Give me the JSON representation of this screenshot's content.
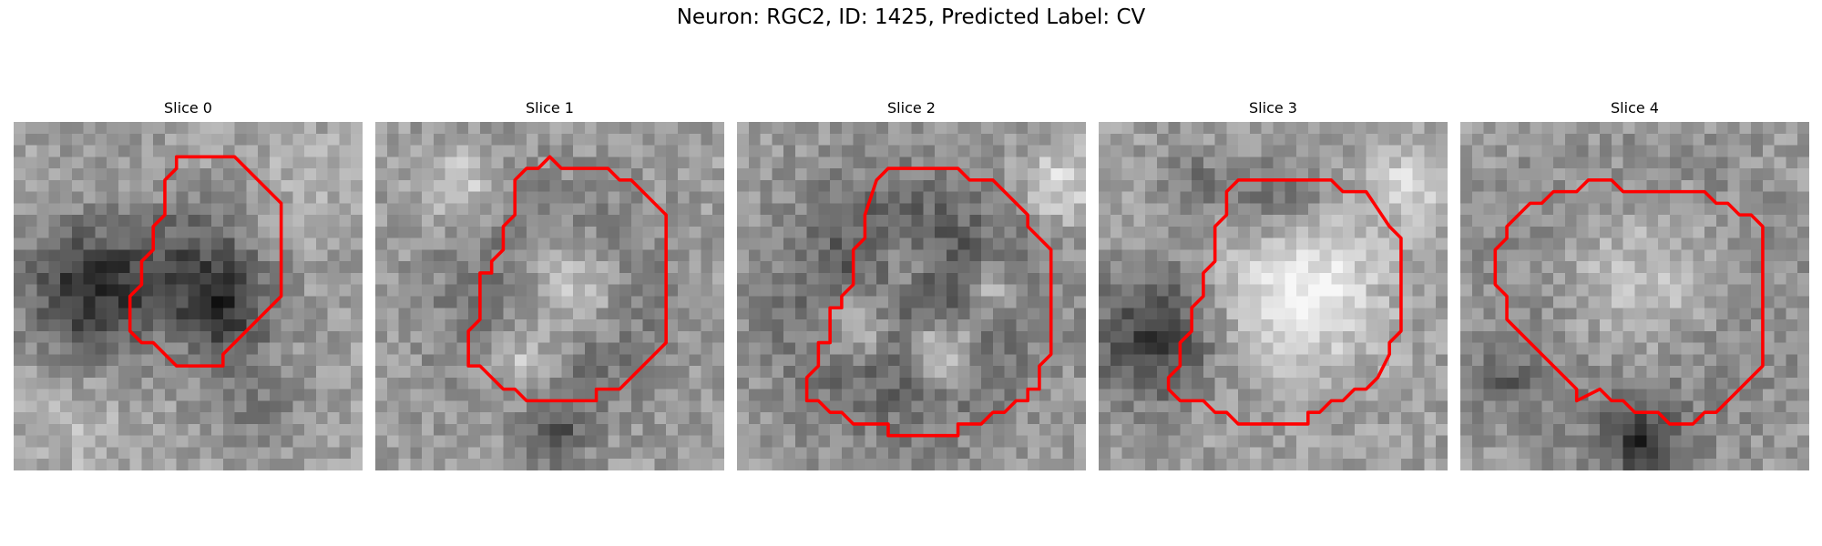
{
  "figure": {
    "title": "Neuron: RGC2, ID: 1425, Predicted Label: CV"
  },
  "colors": {
    "contour": "#ff0000"
  },
  "panels": [
    {
      "title": "Slice 0",
      "grid": 30,
      "contour": [
        [
          14,
          3
        ],
        [
          19,
          3
        ],
        [
          23,
          7
        ],
        [
          23,
          15
        ],
        [
          18,
          20
        ],
        [
          18,
          21
        ],
        [
          14,
          21
        ],
        [
          12,
          19
        ],
        [
          11,
          19
        ],
        [
          10,
          18
        ],
        [
          10,
          15
        ],
        [
          11,
          14
        ],
        [
          11,
          12
        ],
        [
          12,
          11
        ],
        [
          12,
          9
        ],
        [
          13,
          8
        ],
        [
          13,
          5
        ],
        [
          14,
          4
        ]
      ]
    },
    {
      "title": "Slice 1",
      "grid": 30,
      "contour": [
        [
          15,
          3
        ],
        [
          16,
          4
        ],
        [
          20,
          4
        ],
        [
          21,
          5
        ],
        [
          22,
          5
        ],
        [
          25,
          8
        ],
        [
          25,
          19
        ],
        [
          24,
          20
        ],
        [
          23,
          21
        ],
        [
          22,
          22
        ],
        [
          21,
          23
        ],
        [
          19,
          23
        ],
        [
          19,
          24
        ],
        [
          13,
          24
        ],
        [
          12,
          23
        ],
        [
          11,
          23
        ],
        [
          10,
          22
        ],
        [
          9,
          21
        ],
        [
          8,
          21
        ],
        [
          8,
          18
        ],
        [
          9,
          17
        ],
        [
          9,
          13
        ],
        [
          10,
          13
        ],
        [
          10,
          12
        ],
        [
          11,
          11
        ],
        [
          11,
          9
        ],
        [
          12,
          8
        ],
        [
          12,
          5
        ],
        [
          13,
          4
        ],
        [
          14,
          4
        ]
      ]
    },
    {
      "title": "Slice 2",
      "grid": 30,
      "contour": [
        [
          13,
          4
        ],
        [
          19,
          4
        ],
        [
          20,
          5
        ],
        [
          22,
          5
        ],
        [
          25,
          8
        ],
        [
          25,
          9
        ],
        [
          26,
          10
        ],
        [
          27,
          11
        ],
        [
          27,
          20
        ],
        [
          26,
          21
        ],
        [
          26,
          23
        ],
        [
          25,
          23
        ],
        [
          25,
          24
        ],
        [
          24,
          24
        ],
        [
          23,
          25
        ],
        [
          22,
          25
        ],
        [
          21,
          26
        ],
        [
          19,
          26
        ],
        [
          19,
          27
        ],
        [
          13,
          27
        ],
        [
          13,
          26
        ],
        [
          10,
          26
        ],
        [
          9,
          25
        ],
        [
          8,
          25
        ],
        [
          7,
          24
        ],
        [
          6,
          24
        ],
        [
          6,
          22
        ],
        [
          7,
          21
        ],
        [
          7,
          19
        ],
        [
          8,
          19
        ],
        [
          8,
          16
        ],
        [
          9,
          16
        ],
        [
          9,
          15
        ],
        [
          10,
          14
        ],
        [
          10,
          11
        ],
        [
          11,
          10
        ],
        [
          11,
          8
        ],
        [
          12,
          5
        ]
      ]
    },
    {
      "title": "Slice 3",
      "grid": 30,
      "contour": [
        [
          12,
          5
        ],
        [
          20,
          5
        ],
        [
          21,
          6
        ],
        [
          23,
          6
        ],
        [
          25,
          9
        ],
        [
          26,
          10
        ],
        [
          26,
          18
        ],
        [
          25,
          19
        ],
        [
          25,
          20
        ],
        [
          24,
          22
        ],
        [
          23,
          23
        ],
        [
          22,
          23
        ],
        [
          21,
          24
        ],
        [
          20,
          24
        ],
        [
          19,
          25
        ],
        [
          18,
          25
        ],
        [
          18,
          26
        ],
        [
          12,
          26
        ],
        [
          11,
          25
        ],
        [
          10,
          25
        ],
        [
          9,
          24
        ],
        [
          7,
          24
        ],
        [
          6,
          23
        ],
        [
          6,
          22
        ],
        [
          7,
          21
        ],
        [
          7,
          19
        ],
        [
          8,
          18
        ],
        [
          8,
          16
        ],
        [
          9,
          15
        ],
        [
          9,
          13
        ],
        [
          10,
          12
        ],
        [
          10,
          9
        ],
        [
          11,
          8
        ],
        [
          11,
          6
        ]
      ]
    },
    {
      "title": "Slice 4",
      "grid": 30,
      "contour": [
        [
          8,
          6
        ],
        [
          10,
          6
        ],
        [
          11,
          5
        ],
        [
          13,
          5
        ],
        [
          14,
          6
        ],
        [
          21,
          6
        ],
        [
          22,
          7
        ],
        [
          23,
          7
        ],
        [
          24,
          8
        ],
        [
          25,
          8
        ],
        [
          26,
          9
        ],
        [
          26,
          21
        ],
        [
          25,
          22
        ],
        [
          24,
          23
        ],
        [
          23,
          24
        ],
        [
          22,
          25
        ],
        [
          21,
          25
        ],
        [
          20,
          26
        ],
        [
          18,
          26
        ],
        [
          17,
          25
        ],
        [
          15,
          25
        ],
        [
          14,
          24
        ],
        [
          13,
          24
        ],
        [
          12,
          23
        ],
        [
          10,
          24
        ],
        [
          10,
          23
        ],
        [
          9,
          22
        ],
        [
          8,
          21
        ],
        [
          7,
          20
        ],
        [
          5,
          18
        ],
        [
          4,
          17
        ],
        [
          4,
          15
        ],
        [
          3,
          14
        ],
        [
          3,
          11
        ],
        [
          4,
          10
        ],
        [
          4,
          9
        ],
        [
          5,
          8
        ],
        [
          6,
          7
        ],
        [
          7,
          7
        ]
      ]
    }
  ]
}
